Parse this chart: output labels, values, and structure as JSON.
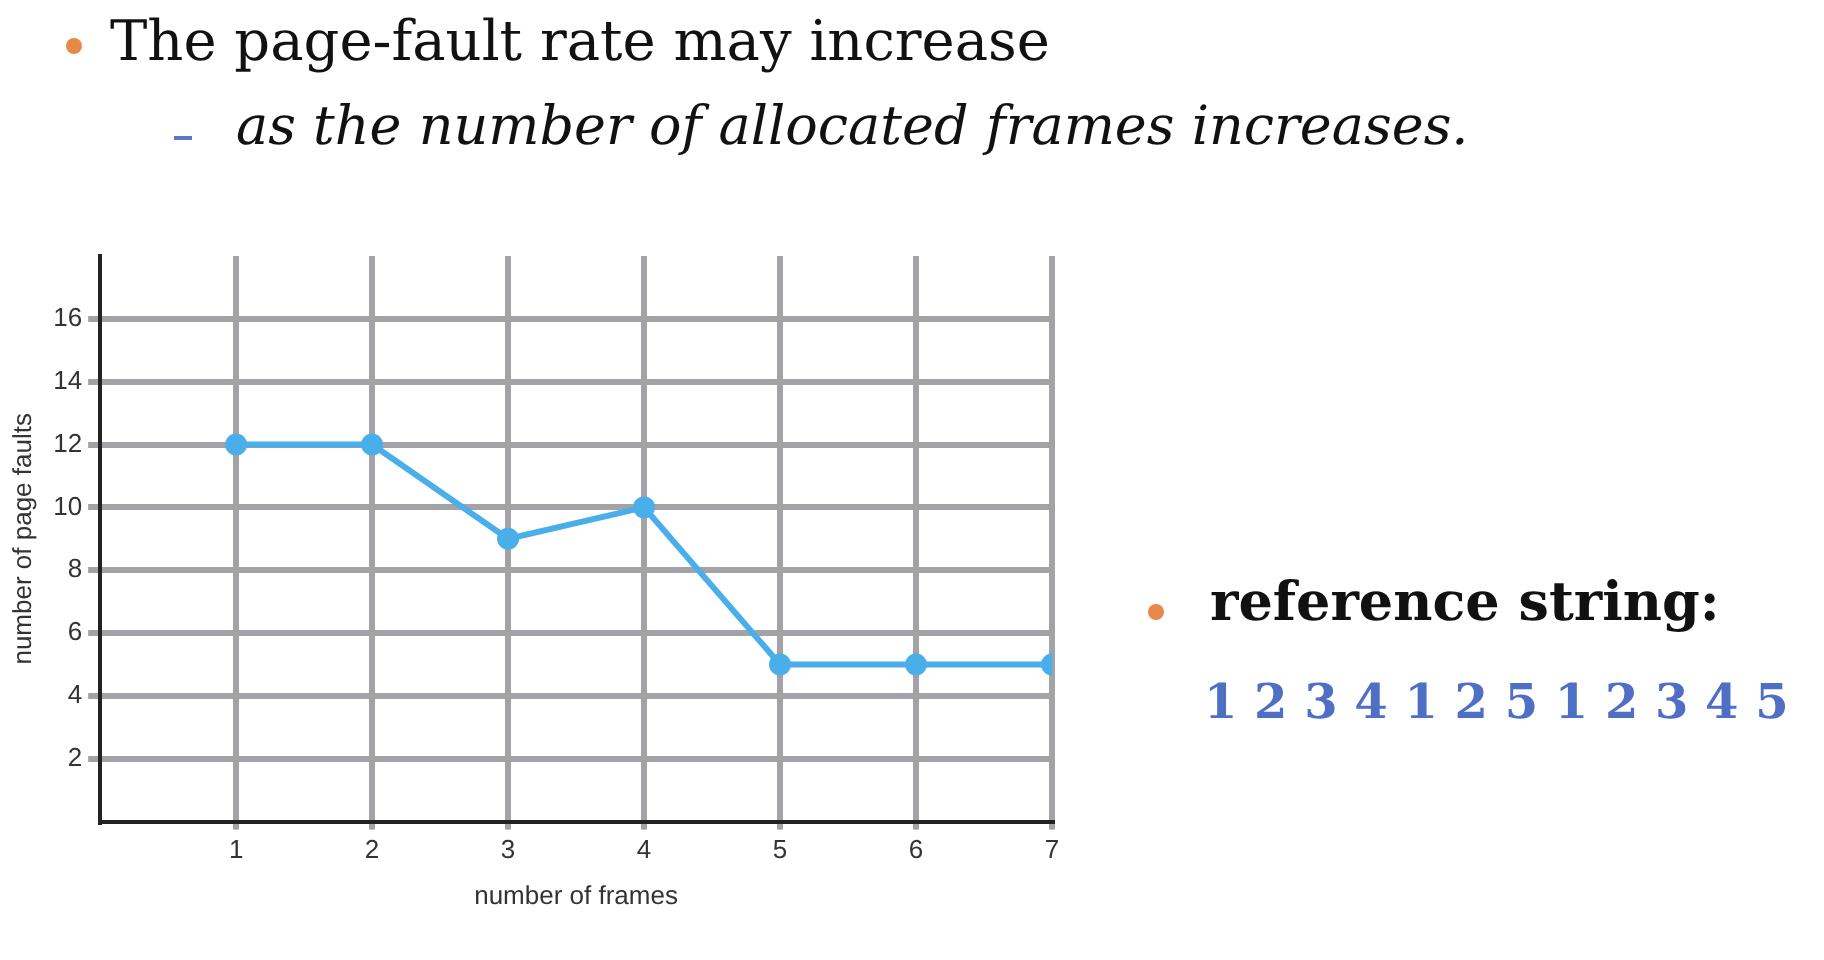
{
  "chart_data": {
    "type": "line",
    "title": "The page-fault rate may increase",
    "subtitle": "as the number of allocated frames increases.",
    "xlabel": "number of frames",
    "ylabel": "number of page faults",
    "annotations": [
      "reference string:",
      "1 2 3 4 1 2 5 1 2 3 4 5"
    ],
    "x": [
      1,
      2,
      3,
      4,
      5,
      6,
      7
    ],
    "series": [
      {
        "color": "#4aaeea",
        "values": [
          12,
          12,
          9,
          10,
          5,
          5,
          5
        ]
      }
    ],
    "xlim": [
      0,
      7
    ],
    "xticks": [
      1,
      2,
      3,
      4,
      5,
      6,
      7
    ],
    "ylim": [
      0,
      18
    ],
    "yticks": [
      2,
      4,
      6,
      8,
      10,
      12,
      14,
      16
    ],
    "grid": true,
    "marker": "circle"
  }
}
